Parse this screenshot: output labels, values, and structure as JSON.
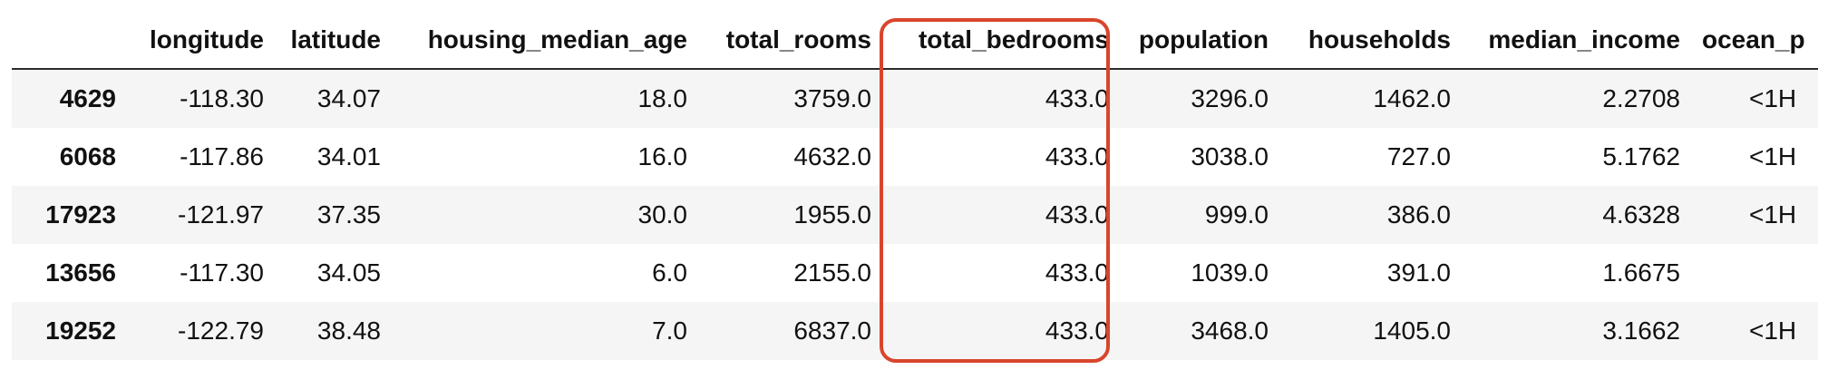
{
  "table": {
    "columns": [
      "",
      "longitude",
      "latitude",
      "housing_median_age",
      "total_rooms",
      "total_bedrooms",
      "population",
      "households",
      "median_income",
      "ocean_p"
    ],
    "rows": [
      {
        "index": "4629",
        "values": [
          "-118.30",
          "34.07",
          "18.0",
          "3759.0",
          "433.0",
          "3296.0",
          "1462.0",
          "2.2708",
          "<1H"
        ]
      },
      {
        "index": "6068",
        "values": [
          "-117.86",
          "34.01",
          "16.0",
          "4632.0",
          "433.0",
          "3038.0",
          "727.0",
          "5.1762",
          "<1H"
        ]
      },
      {
        "index": "17923",
        "values": [
          "-121.97",
          "37.35",
          "30.0",
          "1955.0",
          "433.0",
          "999.0",
          "386.0",
          "4.6328",
          "<1H"
        ]
      },
      {
        "index": "13656",
        "values": [
          "-117.30",
          "34.05",
          "6.0",
          "2155.0",
          "433.0",
          "1039.0",
          "391.0",
          "1.6675",
          ""
        ]
      },
      {
        "index": "19252",
        "values": [
          "-122.79",
          "38.48",
          "7.0",
          "6837.0",
          "433.0",
          "3468.0",
          "1405.0",
          "3.1662",
          "<1H"
        ]
      }
    ]
  },
  "highlight": {
    "column": "total_bedrooms",
    "color": "#d9452b"
  }
}
